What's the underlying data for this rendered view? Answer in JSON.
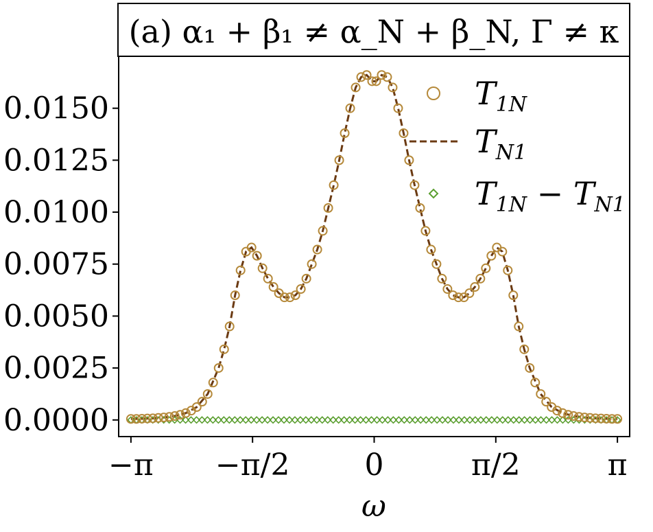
{
  "chart_data": {
    "type": "line",
    "title": "(a) α₁ + β₁ ≠ α_N + β_N, Γ ≠ κ",
    "xlabel": "ω",
    "ylabel": "",
    "xlim": [
      -3.3,
      3.3
    ],
    "ylim": [
      -0.0008,
      0.0175
    ],
    "xticks": {
      "values": [
        -3.14159,
        -1.5708,
        0,
        1.5708,
        3.14159
      ],
      "labels": [
        "−π",
        "−π/2",
        "0",
        "π/2",
        "π"
      ]
    },
    "yticks": {
      "values": [
        0.0,
        0.0025,
        0.005,
        0.0075,
        0.01,
        0.0125,
        0.015
      ],
      "labels": [
        "0.0000",
        "0.0025",
        "0.0050",
        "0.0075",
        "0.0100",
        "0.0125",
        "0.0150"
      ]
    },
    "grid": false,
    "legend": "top-right",
    "series": [
      {
        "name": "T_1N",
        "label_main": "T",
        "label_sub": "1N",
        "style": "open-circle",
        "color": "#B5893A",
        "x": [
          -3.1416,
          -3.0708,
          -3.0,
          -2.9292,
          -2.8584,
          -2.7876,
          -2.7168,
          -2.646,
          -2.5752,
          -2.5044,
          -2.4336,
          -2.3628,
          -2.292,
          -2.2212,
          -2.1504,
          -2.0796,
          -2.0088,
          -1.938,
          -1.8672,
          -1.7964,
          -1.7256,
          -1.6548,
          -1.584,
          -1.5132,
          -1.4424,
          -1.3716,
          -1.3008,
          -1.23,
          -1.1592,
          -1.0884,
          -1.0176,
          -0.9468,
          -0.876,
          -0.8052,
          -0.7344,
          -0.6636,
          -0.5928,
          -0.522,
          -0.4512,
          -0.3804,
          -0.3096,
          -0.2388,
          -0.168,
          -0.0972,
          -0.0264,
          0.0264,
          0.0972,
          0.168,
          0.2388,
          0.3096,
          0.3804,
          0.4512,
          0.522,
          0.5928,
          0.6636,
          0.7344,
          0.8052,
          0.876,
          0.9468,
          1.0176,
          1.0884,
          1.1592,
          1.23,
          1.3008,
          1.3716,
          1.4424,
          1.5132,
          1.584,
          1.6548,
          1.7256,
          1.7964,
          1.8672,
          1.938,
          2.0088,
          2.0796,
          2.1504,
          2.2212,
          2.292,
          2.3628,
          2.4336,
          2.5044,
          2.5752,
          2.646,
          2.7168,
          2.7876,
          2.8584,
          2.9292,
          3.0,
          3.0708,
          3.1416
        ],
        "y": [
          5e-05,
          5e-05,
          6e-05,
          7e-05,
          8e-05,
          0.0001,
          0.00012,
          0.00015,
          0.00019,
          0.00025,
          0.00033,
          0.00045,
          0.00062,
          0.00088,
          0.00125,
          0.0018,
          0.0025,
          0.0034,
          0.0045,
          0.006,
          0.0072,
          0.0081,
          0.0083,
          0.0079,
          0.0073,
          0.0068,
          0.0064,
          0.0061,
          0.0059,
          0.0059,
          0.006,
          0.0063,
          0.0068,
          0.0075,
          0.0082,
          0.0091,
          0.0102,
          0.0113,
          0.0125,
          0.0138,
          0.015,
          0.016,
          0.0165,
          0.0166,
          0.0163,
          0.0163,
          0.0166,
          0.0165,
          0.016,
          0.015,
          0.0138,
          0.0125,
          0.0113,
          0.0102,
          0.0091,
          0.0082,
          0.0075,
          0.0068,
          0.0063,
          0.006,
          0.0059,
          0.0059,
          0.0061,
          0.0064,
          0.0068,
          0.0073,
          0.0079,
          0.0083,
          0.0081,
          0.0072,
          0.006,
          0.0045,
          0.0034,
          0.0025,
          0.0018,
          0.00125,
          0.00088,
          0.00062,
          0.00045,
          0.00033,
          0.00025,
          0.00019,
          0.00015,
          0.00012,
          0.0001,
          8e-05,
          7e-05,
          6e-05,
          5e-05,
          5e-05
        ]
      },
      {
        "name": "T_N1",
        "label_main": "T",
        "label_sub": "N1",
        "style": "dashed-line",
        "color": "#6B3A12",
        "x": [
          -3.1416,
          -3.0,
          -2.8584,
          -2.7168,
          -2.5752,
          -2.4336,
          -2.292,
          -2.1504,
          -2.0088,
          -1.938,
          -1.8672,
          -1.7964,
          -1.7256,
          -1.6548,
          -1.584,
          -1.5132,
          -1.4424,
          -1.3716,
          -1.3008,
          -1.23,
          -1.1592,
          -1.0884,
          -1.0176,
          -0.9468,
          -0.876,
          -0.8052,
          -0.7344,
          -0.6636,
          -0.5928,
          -0.522,
          -0.4512,
          -0.3804,
          -0.3096,
          -0.2388,
          -0.168,
          -0.0972,
          -0.0264,
          0.0264,
          0.0972,
          0.168,
          0.2388,
          0.3096,
          0.3804,
          0.4512,
          0.522,
          0.5928,
          0.6636,
          0.7344,
          0.8052,
          0.876,
          0.9468,
          1.0176,
          1.0884,
          1.1592,
          1.23,
          1.3008,
          1.3716,
          1.4424,
          1.5132,
          1.584,
          1.6548,
          1.7256,
          1.7964,
          1.8672,
          1.938,
          2.0088,
          2.1504,
          2.292,
          2.4336,
          2.5752,
          2.7168,
          2.8584,
          3.0,
          3.1416
        ],
        "y": [
          5e-05,
          6e-05,
          8e-05,
          0.00012,
          0.00019,
          0.00033,
          0.00062,
          0.00125,
          0.0025,
          0.0034,
          0.0045,
          0.006,
          0.0072,
          0.0081,
          0.0083,
          0.0079,
          0.0073,
          0.0068,
          0.0064,
          0.0061,
          0.0059,
          0.0059,
          0.006,
          0.0063,
          0.0068,
          0.0075,
          0.0082,
          0.0091,
          0.0102,
          0.0113,
          0.0125,
          0.0138,
          0.015,
          0.016,
          0.0165,
          0.0166,
          0.0163,
          0.0163,
          0.0166,
          0.0165,
          0.016,
          0.015,
          0.0138,
          0.0125,
          0.0113,
          0.0102,
          0.0091,
          0.0082,
          0.0075,
          0.0068,
          0.0063,
          0.006,
          0.0059,
          0.0059,
          0.0061,
          0.0064,
          0.0068,
          0.0073,
          0.0079,
          0.0083,
          0.0081,
          0.0072,
          0.006,
          0.0045,
          0.0034,
          0.0025,
          0.00125,
          0.00062,
          0.00033,
          0.00019,
          0.00012,
          8e-05,
          6e-05,
          5e-05
        ]
      },
      {
        "name": "T_1N − T_N1",
        "label_main": "T",
        "label_sub": "1N",
        "label_minus": " − ",
        "label_main2": "T",
        "label_sub2": "N1",
        "style": "open-diamond",
        "color": "#5A9E2F",
        "x_start": -3.1416,
        "x_end": 3.1416,
        "count": 90,
        "y_value": 0.0
      }
    ]
  }
}
